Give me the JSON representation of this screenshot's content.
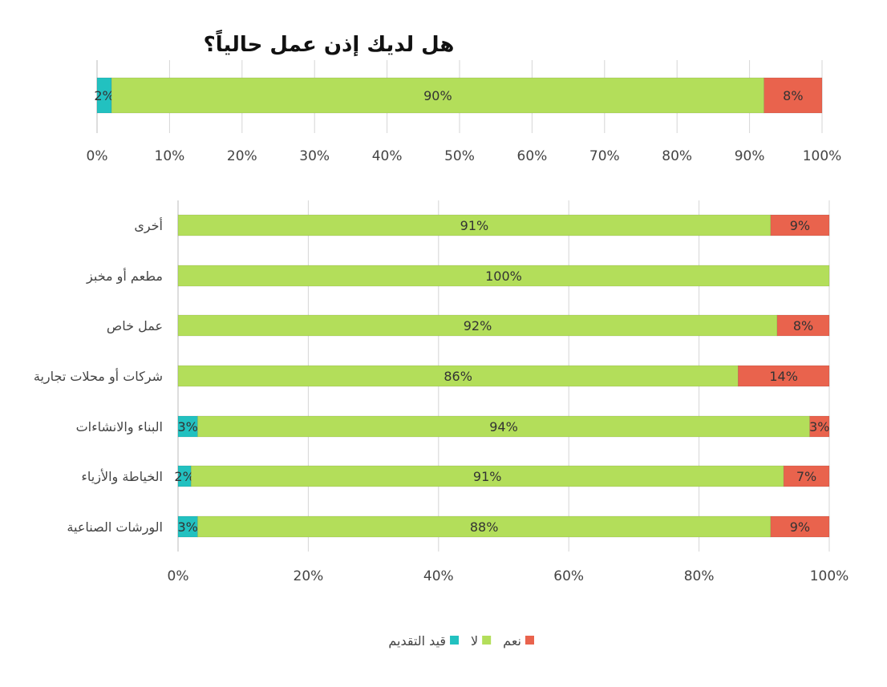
{
  "chart_data": [
    {
      "type": "bar",
      "orientation": "horizontal",
      "stacked": "percent",
      "title": "هل لديك إذن عمل حالياً؟",
      "categories": [
        ""
      ],
      "series": [
        {
          "name": "قيد التقديم",
          "values": [
            2
          ],
          "labels": [
            "2%"
          ]
        },
        {
          "name": "لا",
          "values": [
            90
          ],
          "labels": [
            "90%"
          ]
        },
        {
          "name": "نعم",
          "values": [
            8
          ],
          "labels": [
            "8%"
          ]
        }
      ],
      "xlim": [
        0,
        100
      ],
      "xticks": [
        "0%",
        "10%",
        "20%",
        "30%",
        "40%",
        "50%",
        "60%",
        "70%",
        "80%",
        "90%",
        "100%"
      ],
      "grid": true
    },
    {
      "type": "bar",
      "orientation": "horizontal",
      "stacked": "percent",
      "title": "",
      "categories": [
        "أخرى",
        "مطعم أو مخبز",
        "عمل خاص",
        "شركات أو محلات تجارية",
        "البناء والانشاءات",
        "الخياطة والأزياء",
        "الورشات الصناعية"
      ],
      "series": [
        {
          "name": "قيد التقديم",
          "values": [
            0,
            0,
            0,
            0,
            3,
            2,
            3
          ],
          "labels": [
            "",
            "",
            "",
            "",
            "3%",
            "2%",
            "3%"
          ]
        },
        {
          "name": "لا",
          "values": [
            91,
            100,
            92,
            86,
            94,
            91,
            88
          ],
          "labels": [
            "91%",
            "100%",
            "92%",
            "86%",
            "94%",
            "91%",
            "88%"
          ]
        },
        {
          "name": "نعم",
          "values": [
            9,
            0,
            8,
            14,
            3,
            7,
            9
          ],
          "labels": [
            "9%",
            "",
            "8%",
            "14%",
            "3%",
            "7%",
            "9%"
          ]
        }
      ],
      "xlim": [
        0,
        100
      ],
      "xticks": [
        "0%",
        "20%",
        "40%",
        "60%",
        "80%",
        "100%"
      ],
      "grid": true,
      "legend": "bottom"
    }
  ],
  "colors": {
    "قيد التقديم": "#22c1c0",
    "لا": "#b3de5a",
    "نعم": "#e9634d"
  },
  "legend": [
    {
      "label": "نعم",
      "color": "#e9634d"
    },
    {
      "label": "لا",
      "color": "#b3de5a"
    },
    {
      "label": "قيد التقديم",
      "color": "#22c1c0"
    }
  ]
}
